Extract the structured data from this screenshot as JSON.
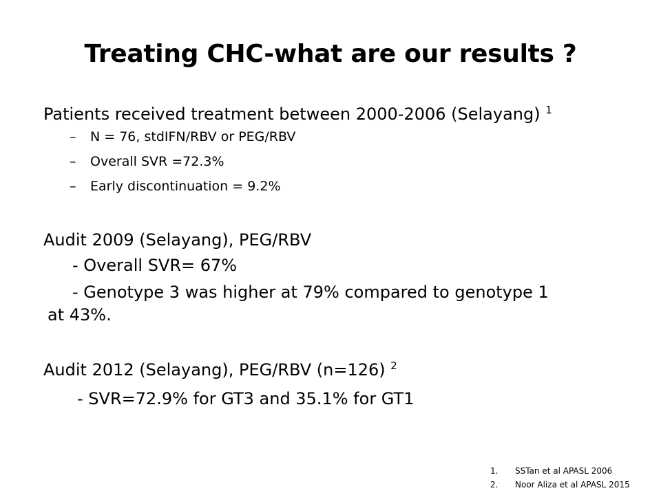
{
  "slide": {
    "title": "Treating CHC-what are our results ?",
    "section1": {
      "heading": "Patients received treatment between 2000-2006 (Selayang)",
      "ref": "1",
      "bullets": [
        "N = 76, stdIFN/RBV or PEG/RBV",
        "Overall SVR =72.3%",
        "Early discontinuation = 9.2%"
      ],
      "dash": "–"
    },
    "section2": {
      "heading": "Audit 2009 (Selayang), PEG/RBV",
      "item1": "- Overall SVR= 67%",
      "item2_line1": "- Genotype 3 was higher at 79% compared to genotype 1",
      "item2_line2": "at 43%."
    },
    "section3": {
      "heading": "Audit 2012 (Selayang), PEG/RBV (n=126)",
      "ref": "2",
      "item1": "- SVR=72.9% for GT3 and 35.1% for GT1"
    },
    "references": [
      {
        "num": "1.",
        "text": "SSTan et al APASL 2006"
      },
      {
        "num": "2.",
        "text": "Noor Aliza et al  APASL 2015"
      }
    ]
  }
}
